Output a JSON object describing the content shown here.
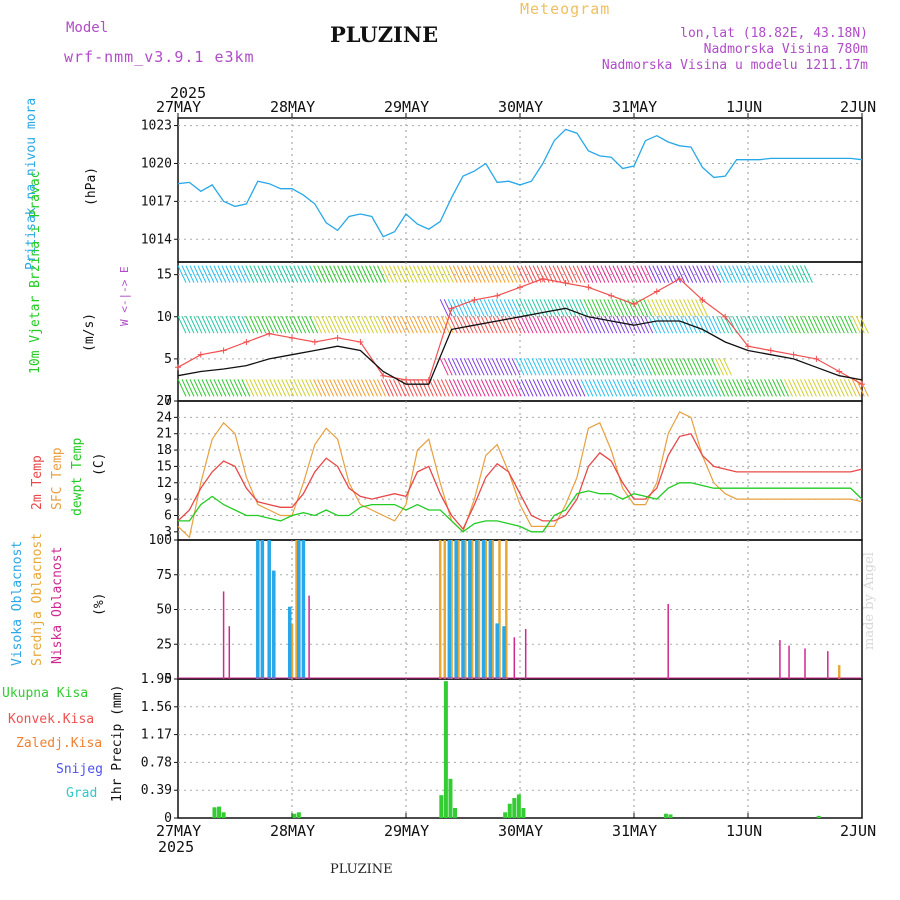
{
  "header": {
    "model_label": "Model",
    "model_version": "wrf-nmm_v3.9.1 e3km",
    "title": "PLUZINE",
    "meteogram": "Meteogram",
    "coords": "lon,lat (18.82E, 43.18N)",
    "elevation": "Nadmorska Visina 780m",
    "model_elevation": "Nadmorska Visina u modelu 1211.17m"
  },
  "footer": {
    "name": "PLUZINE",
    "watermark": "made by Angel"
  },
  "colors": {
    "pressure": "#28a8e8",
    "wind_speed": "#111111",
    "wind_gust": "#f05050",
    "temp2m": "#e84848",
    "sfc": "#e8a040",
    "dew": "#22cc22",
    "high_cloud": "#28a8e8",
    "mid_cloud": "#e8a838",
    "low_cloud": "#d02890",
    "precip": "#33cc33",
    "conv": "#f05050",
    "frozen": "#f08030",
    "snow": "#5050f0",
    "hail": "#30c8c8"
  },
  "chart_data": [
    {
      "type": "line",
      "title": "Pritisak na nivou mora",
      "ylabel": "(hPa)",
      "ylim": [
        1012.2,
        1023.6
      ],
      "yticks": [
        "1023",
        "1020",
        "1017",
        "1014"
      ],
      "xticks_top": [
        "27MAY",
        "28MAY",
        "29MAY",
        "30MAY",
        "31MAY",
        "1JUN",
        "2JUN"
      ],
      "year_top": "2025",
      "x_days": [
        0,
        0.1,
        0.2,
        0.3,
        0.4,
        0.5,
        0.6,
        0.7,
        0.8,
        0.9,
        1.0,
        1.1,
        1.2,
        1.3,
        1.4,
        1.5,
        1.6,
        1.7,
        1.8,
        1.9,
        2.0,
        2.1,
        2.2,
        2.3,
        2.4,
        2.5,
        2.6,
        2.7,
        2.8,
        2.9,
        3.0,
        3.1,
        3.2,
        3.3,
        3.4,
        3.5,
        3.6,
        3.7,
        3.8,
        3.9,
        4.0,
        4.1,
        4.2,
        4.3,
        4.4,
        4.5,
        4.6,
        4.7,
        4.8,
        4.9,
        5.0,
        5.1,
        5.2,
        5.3,
        5.4,
        5.5,
        5.6,
        5.7,
        5.8,
        5.9,
        6.0
      ],
      "series": [
        {
          "name": "MSLP",
          "values": [
            1018.4,
            1018.5,
            1017.8,
            1018.3,
            1017.0,
            1016.6,
            1016.8,
            1018.6,
            1018.4,
            1018.0,
            1018.0,
            1017.5,
            1016.8,
            1015.3,
            1014.7,
            1015.8,
            1016.0,
            1015.8,
            1014.2,
            1014.6,
            1016.0,
            1015.2,
            1014.8,
            1015.4,
            1017.3,
            1019.0,
            1019.4,
            1020.0,
            1018.5,
            1018.6,
            1018.3,
            1018.6,
            1020.0,
            1021.8,
            1022.7,
            1022.4,
            1021.0,
            1020.6,
            1020.5,
            1019.6,
            1019.8,
            1021.8,
            1022.2,
            1021.7,
            1021.4,
            1021.3,
            1019.7,
            1018.9,
            1019.0,
            1020.3,
            1020.3,
            1020.3,
            1020.4,
            1020.4,
            1020.4,
            1020.4,
            1020.4,
            1020.4,
            1020.4,
            1020.4,
            1020.3
          ]
        }
      ]
    },
    {
      "type": "line",
      "title": "10m Vjetar Brzina i Pravac",
      "ylabel": "(m/s)",
      "compass": "W <-|-> E",
      "ylim": [
        0,
        16.5
      ],
      "yticks": [
        "15",
        "10",
        "5",
        "0"
      ],
      "x_days": [
        0,
        0.2,
        0.4,
        0.6,
        0.8,
        1.0,
        1.2,
        1.4,
        1.6,
        1.8,
        2.0,
        2.2,
        2.4,
        2.6,
        2.8,
        3.0,
        3.2,
        3.4,
        3.6,
        3.8,
        4.0,
        4.2,
        4.4,
        4.6,
        4.8,
        5.0,
        5.2,
        5.4,
        5.6,
        5.8,
        6.0
      ],
      "series": [
        {
          "name": "speed",
          "values": [
            3.0,
            3.5,
            3.8,
            4.2,
            5.0,
            5.5,
            6.0,
            6.5,
            6.0,
            3.5,
            2.0,
            2.0,
            8.5,
            9.0,
            9.5,
            10.0,
            10.5,
            11.0,
            10.0,
            9.5,
            9.0,
            9.5,
            9.5,
            8.5,
            7.0,
            6.0,
            5.5,
            5.0,
            4.0,
            3.0,
            2.5
          ]
        },
        {
          "name": "gust",
          "values": [
            4.0,
            5.5,
            6.0,
            7.0,
            8.0,
            7.5,
            7.0,
            7.5,
            7.0,
            3.0,
            2.5,
            2.5,
            11.0,
            12.0,
            12.5,
            13.5,
            14.5,
            14.0,
            13.5,
            12.5,
            11.5,
            13.0,
            14.5,
            12.0,
            10.0,
            6.5,
            6.0,
            5.5,
            5.0,
            3.5,
            2.0
          ]
        }
      ]
    },
    {
      "type": "line",
      "title": "2m Temp / SFC Temp / dewpt Temp",
      "ylabel": "(C)",
      "legend": [
        "2m Temp",
        "SFC Temp",
        "dewpt Temp"
      ],
      "ylim": [
        1.5,
        27
      ],
      "yticks": [
        "27",
        "24",
        "21",
        "18",
        "15",
        "12",
        "9",
        "6",
        "3"
      ],
      "x_days": [
        0,
        0.1,
        0.2,
        0.3,
        0.4,
        0.5,
        0.6,
        0.7,
        0.8,
        0.9,
        1.0,
        1.1,
        1.2,
        1.3,
        1.4,
        1.5,
        1.6,
        1.7,
        1.8,
        1.9,
        2.0,
        2.1,
        2.2,
        2.3,
        2.4,
        2.5,
        2.6,
        2.7,
        2.8,
        2.9,
        3.0,
        3.1,
        3.2,
        3.3,
        3.4,
        3.5,
        3.6,
        3.7,
        3.8,
        3.9,
        4.0,
        4.1,
        4.2,
        4.3,
        4.4,
        4.5,
        4.6,
        4.7,
        4.8,
        4.9,
        5.0,
        5.1,
        5.2,
        5.3,
        5.4,
        5.5,
        5.6,
        5.7,
        5.8,
        5.9,
        6.0
      ],
      "series": [
        {
          "name": "2m Temp",
          "values": [
            5,
            7,
            11,
            14,
            16,
            15,
            11,
            8.5,
            8,
            7.5,
            7.5,
            10,
            14,
            16.5,
            15,
            11,
            9.5,
            9,
            9.5,
            10,
            9.5,
            14,
            15,
            10,
            6,
            3.5,
            8,
            13,
            15.5,
            14,
            10,
            6,
            5,
            5,
            6,
            9,
            15,
            17.5,
            16,
            12,
            9,
            9,
            11,
            17,
            20.5,
            21,
            17,
            15,
            14.5,
            14,
            14,
            14,
            14,
            14,
            14,
            14,
            14,
            14,
            14,
            14,
            14.5
          ]
        },
        {
          "name": "SFC Temp",
          "values": [
            4,
            2,
            12,
            20,
            23,
            21,
            13,
            8,
            7,
            6,
            6,
            12,
            19,
            22,
            20,
            12,
            8,
            7,
            6,
            5,
            8,
            18,
            20,
            12,
            5,
            3,
            9,
            17,
            19,
            14,
            8,
            4,
            4,
            4,
            8,
            13,
            22,
            23,
            18,
            11,
            8,
            8,
            12,
            21,
            25,
            24,
            17,
            12,
            10,
            9,
            9,
            9,
            9,
            9,
            9,
            9,
            9,
            9,
            9,
            9,
            8.5
          ]
        },
        {
          "name": "dewpt Temp",
          "values": [
            5,
            5,
            8,
            9.5,
            8,
            7,
            6,
            6,
            5.5,
            5,
            6,
            6.5,
            6,
            7,
            6,
            6,
            7.5,
            8,
            8,
            8,
            7,
            8,
            7,
            7,
            5,
            3,
            4.5,
            5,
            5,
            4.5,
            4,
            3,
            3,
            6,
            7,
            10,
            10.5,
            10,
            10,
            9,
            10,
            9.5,
            9,
            11,
            12,
            12,
            11.5,
            11,
            11,
            11,
            11,
            11,
            11,
            11,
            11,
            11,
            11,
            11,
            11,
            11,
            9
          ]
        }
      ]
    },
    {
      "type": "bar",
      "title": "Visoka / Srednja / Niska Oblacnost",
      "ylabel": "(%)",
      "legend": [
        "Visoka Oblacnost",
        "Srednja Oblacnost",
        "Niska Oblacnost"
      ],
      "ylim": [
        0,
        100
      ],
      "yticks": [
        "100",
        "75",
        "50",
        "25",
        "0"
      ],
      "high": [
        [
          0.7,
          100
        ],
        [
          0.74,
          100
        ],
        [
          0.8,
          100
        ],
        [
          0.84,
          78
        ],
        [
          0.98,
          52
        ],
        [
          1.06,
          100
        ],
        [
          1.1,
          100
        ],
        [
          2.38,
          100
        ],
        [
          2.44,
          100
        ],
        [
          2.5,
          100
        ],
        [
          2.56,
          100
        ],
        [
          2.62,
          100
        ],
        [
          2.68,
          100
        ],
        [
          2.74,
          100
        ],
        [
          2.8,
          40
        ],
        [
          2.86,
          38
        ]
      ],
      "mid": [
        [
          1.0,
          40
        ],
        [
          1.04,
          100
        ],
        [
          2.3,
          100
        ],
        [
          2.34,
          100
        ],
        [
          2.4,
          100
        ],
        [
          2.46,
          100
        ],
        [
          2.52,
          100
        ],
        [
          2.58,
          100
        ],
        [
          2.64,
          100
        ],
        [
          2.7,
          100
        ],
        [
          2.76,
          100
        ],
        [
          2.82,
          100
        ],
        [
          2.88,
          100
        ],
        [
          5.8,
          10
        ]
      ],
      "low": [
        [
          0.4,
          63
        ],
        [
          0.45,
          38
        ],
        [
          1.15,
          60
        ],
        [
          2.95,
          30
        ],
        [
          3.05,
          36
        ],
        [
          4.3,
          54
        ],
        [
          5.28,
          28
        ],
        [
          5.36,
          24
        ],
        [
          5.5,
          22
        ],
        [
          5.7,
          20
        ]
      ]
    },
    {
      "type": "bar",
      "title": "1hr Precip",
      "ylabel": "1hr Precip (mm)",
      "legend": [
        "Ukupna Kisa",
        "Konvek.Kisa",
        "Zaledj.Kisa",
        "Snijeg",
        "Grad"
      ],
      "ylim": [
        0,
        1.95
      ],
      "yticks": [
        "1.95",
        "1.56",
        "1.17",
        "0.78",
        "0.39",
        "0"
      ],
      "xticks_bottom": [
        "27MAY",
        "28MAY",
        "29MAY",
        "30MAY",
        "31MAY",
        "1JUN",
        "2JUN"
      ],
      "year_bottom": "2025",
      "precip": [
        [
          0.32,
          0.15
        ],
        [
          0.36,
          0.16
        ],
        [
          0.4,
          0.08
        ],
        [
          1.02,
          0.06
        ],
        [
          1.06,
          0.08
        ],
        [
          2.31,
          0.32
        ],
        [
          2.35,
          1.92
        ],
        [
          2.39,
          0.55
        ],
        [
          2.43,
          0.14
        ],
        [
          2.87,
          0.08
        ],
        [
          2.91,
          0.2
        ],
        [
          2.95,
          0.28
        ],
        [
          2.99,
          0.33
        ],
        [
          3.03,
          0.14
        ],
        [
          4.28,
          0.06
        ],
        [
          4.32,
          0.05
        ],
        [
          5.62,
          0.03
        ]
      ]
    }
  ]
}
